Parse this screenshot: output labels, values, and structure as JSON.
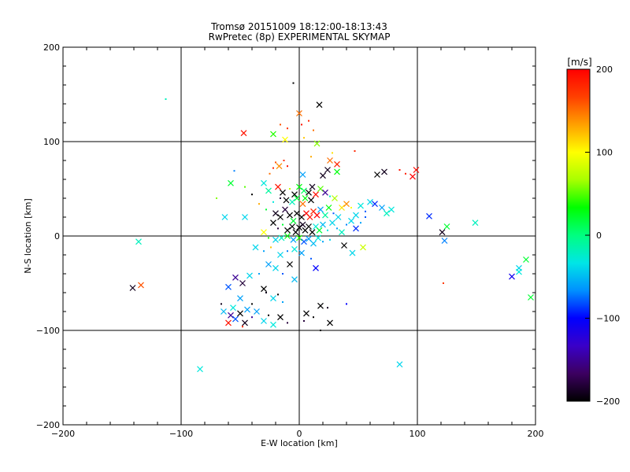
{
  "chart_data": {
    "type": "scatter",
    "title": "Tromsø 20151009 18:12:00-18:13:43",
    "subtitle": "RwPretec (8p) EXPERIMENTAL SKYMAP",
    "xlabel": "E-W location [km]",
    "ylabel": "N-S location [km]",
    "xlim": [
      -200,
      200
    ],
    "ylim": [
      -200,
      200
    ],
    "x_ticks": [
      -200,
      -100,
      0,
      100,
      200
    ],
    "y_ticks": [
      -200,
      -100,
      0,
      100,
      200
    ],
    "grid": true,
    "colorbar": {
      "label": "[m/s]",
      "range": [
        -200,
        200
      ],
      "ticks": [
        -200,
        -100,
        0,
        100,
        200
      ],
      "palette": [
        "#000000",
        "#3c0060",
        "#3a00c8",
        "#0000ff",
        "#0090ff",
        "#00e6e6",
        "#00ff80",
        "#00ff00",
        "#a8ff00",
        "#ffff00",
        "#ffa000",
        "#ff4000",
        "#ff0000"
      ]
    },
    "markers": [
      {
        "x": 17,
        "y": 139,
        "v": -200,
        "s": "x"
      },
      {
        "x": -5,
        "y": 162,
        "v": -200,
        "s": "dot"
      },
      {
        "x": 0,
        "y": 130,
        "v": 150,
        "s": "x"
      },
      {
        "x": -47,
        "y": 109,
        "v": 190,
        "s": "x"
      },
      {
        "x": -113,
        "y": 145,
        "v": -20,
        "s": "dot"
      },
      {
        "x": -16,
        "y": 118,
        "v": 160,
        "s": "dot"
      },
      {
        "x": -10,
        "y": 114,
        "v": 175,
        "s": "dot"
      },
      {
        "x": 2,
        "y": 118,
        "v": 190,
        "s": "dot"
      },
      {
        "x": 8,
        "y": 122,
        "v": 180,
        "s": "dot"
      },
      {
        "x": 12,
        "y": 112,
        "v": 150,
        "s": "dot"
      },
      {
        "x": -22,
        "y": 108,
        "v": 40,
        "s": "x"
      },
      {
        "x": -12,
        "y": 102,
        "v": 100,
        "s": "x"
      },
      {
        "x": 4,
        "y": 104,
        "v": 120,
        "s": "dot"
      },
      {
        "x": 15,
        "y": 98,
        "v": 60,
        "s": "x"
      },
      {
        "x": 10,
        "y": 84,
        "v": 130,
        "s": "dot"
      },
      {
        "x": 28,
        "y": 88,
        "v": 110,
        "s": "dot"
      },
      {
        "x": 47,
        "y": 90,
        "v": 180,
        "s": "dot"
      },
      {
        "x": 26,
        "y": 80,
        "v": 150,
        "s": "x"
      },
      {
        "x": 32,
        "y": 76,
        "v": 180,
        "s": "x"
      },
      {
        "x": 24,
        "y": 70,
        "v": -190,
        "s": "x"
      },
      {
        "x": 32,
        "y": 68,
        "v": 30,
        "s": "x"
      },
      {
        "x": -20,
        "y": 78,
        "v": 160,
        "s": "dot"
      },
      {
        "x": -17,
        "y": 74,
        "v": 140,
        "s": "x"
      },
      {
        "x": -22,
        "y": 72,
        "v": 180,
        "s": "dot"
      },
      {
        "x": -13,
        "y": 80,
        "v": 175,
        "s": "dot"
      },
      {
        "x": -10,
        "y": 74,
        "v": 190,
        "s": "dot"
      },
      {
        "x": -25,
        "y": 66,
        "v": 150,
        "s": "dot"
      },
      {
        "x": 3,
        "y": 65,
        "v": -60,
        "s": "x"
      },
      {
        "x": 20,
        "y": 64,
        "v": -190,
        "s": "x"
      },
      {
        "x": 66,
        "y": 65,
        "v": -200,
        "s": "x"
      },
      {
        "x": 72,
        "y": 68,
        "v": -190,
        "s": "x"
      },
      {
        "x": 85,
        "y": 70,
        "v": 190,
        "s": "dot"
      },
      {
        "x": 90,
        "y": 66,
        "v": 185,
        "s": "dot"
      },
      {
        "x": 99,
        "y": 70,
        "v": 195,
        "s": "x"
      },
      {
        "x": 96,
        "y": 63,
        "v": 200,
        "s": "x"
      },
      {
        "x": -55,
        "y": 69,
        "v": -70,
        "s": "dot"
      },
      {
        "x": -46,
        "y": 52,
        "v": 50,
        "s": "dot"
      },
      {
        "x": -58,
        "y": 56,
        "v": 20,
        "s": "x"
      },
      {
        "x": -40,
        "y": 44,
        "v": -200,
        "s": "dot"
      },
      {
        "x": -30,
        "y": 56,
        "v": -30,
        "s": "x"
      },
      {
        "x": -26,
        "y": 48,
        "v": -10,
        "s": "x"
      },
      {
        "x": -18,
        "y": 52,
        "v": 190,
        "s": "x"
      },
      {
        "x": -14,
        "y": 46,
        "v": -200,
        "s": "x"
      },
      {
        "x": -8,
        "y": 50,
        "v": 80,
        "s": "dot"
      },
      {
        "x": -4,
        "y": 44,
        "v": -200,
        "s": "x"
      },
      {
        "x": 0,
        "y": 52,
        "v": 30,
        "s": "x"
      },
      {
        "x": 4,
        "y": 48,
        "v": 10,
        "s": "x"
      },
      {
        "x": 8,
        "y": 46,
        "v": -200,
        "s": "x"
      },
      {
        "x": 11,
        "y": 52,
        "v": -190,
        "s": "x"
      },
      {
        "x": 14,
        "y": 44,
        "v": 190,
        "s": "x"
      },
      {
        "x": 18,
        "y": 50,
        "v": 50,
        "s": "x"
      },
      {
        "x": 22,
        "y": 46,
        "v": -150,
        "s": "x"
      },
      {
        "x": 26,
        "y": 42,
        "v": -20,
        "s": "dot"
      },
      {
        "x": 30,
        "y": 40,
        "v": 70,
        "s": "x"
      },
      {
        "x": -2,
        "y": 40,
        "v": 20,
        "s": "x"
      },
      {
        "x": 5,
        "y": 40,
        "v": 30,
        "s": "x"
      },
      {
        "x": 10,
        "y": 38,
        "v": -200,
        "s": "x"
      },
      {
        "x": 3,
        "y": 34,
        "v": 150,
        "s": "x"
      },
      {
        "x": -6,
        "y": 36,
        "v": -20,
        "s": "x"
      },
      {
        "x": -11,
        "y": 38,
        "v": -200,
        "s": "x"
      },
      {
        "x": -16,
        "y": 40,
        "v": -180,
        "s": "dot"
      },
      {
        "x": -22,
        "y": 36,
        "v": -30,
        "s": "dot"
      },
      {
        "x": -34,
        "y": 34,
        "v": 130,
        "s": "dot"
      },
      {
        "x": -70,
        "y": 40,
        "v": 60,
        "s": "dot"
      },
      {
        "x": -63,
        "y": 20,
        "v": -40,
        "s": "x"
      },
      {
        "x": -46,
        "y": 20,
        "v": -40,
        "s": "x"
      },
      {
        "x": -28,
        "y": 28,
        "v": 20,
        "s": "dot"
      },
      {
        "x": -20,
        "y": 24,
        "v": -190,
        "s": "x"
      },
      {
        "x": -16,
        "y": 20,
        "v": -200,
        "s": "x"
      },
      {
        "x": -12,
        "y": 28,
        "v": -180,
        "s": "x"
      },
      {
        "x": -8,
        "y": 22,
        "v": -200,
        "s": "x"
      },
      {
        "x": -5,
        "y": 16,
        "v": 20,
        "s": "x"
      },
      {
        "x": -2,
        "y": 24,
        "v": -200,
        "s": "x"
      },
      {
        "x": 2,
        "y": 20,
        "v": -200,
        "s": "x"
      },
      {
        "x": 6,
        "y": 24,
        "v": 200,
        "s": "x"
      },
      {
        "x": 9,
        "y": 20,
        "v": 190,
        "s": "x"
      },
      {
        "x": 12,
        "y": 26,
        "v": 180,
        "s": "x"
      },
      {
        "x": 15,
        "y": 22,
        "v": 200,
        "s": "x"
      },
      {
        "x": 18,
        "y": 28,
        "v": -60,
        "s": "x"
      },
      {
        "x": 22,
        "y": 22,
        "v": -10,
        "s": "x"
      },
      {
        "x": 25,
        "y": 30,
        "v": 30,
        "s": "x"
      },
      {
        "x": 29,
        "y": 24,
        "v": -80,
        "s": "dot"
      },
      {
        "x": 33,
        "y": 20,
        "v": -40,
        "s": "x"
      },
      {
        "x": 36,
        "y": 30,
        "v": 110,
        "s": "x"
      },
      {
        "x": 40,
        "y": 34,
        "v": 140,
        "s": "x"
      },
      {
        "x": 44,
        "y": 30,
        "v": 100,
        "s": "dot"
      },
      {
        "x": 48,
        "y": 22,
        "v": -40,
        "s": "x"
      },
      {
        "x": 52,
        "y": 32,
        "v": -30,
        "s": "x"
      },
      {
        "x": 56,
        "y": 26,
        "v": -80,
        "s": "dot"
      },
      {
        "x": 60,
        "y": 36,
        "v": -40,
        "s": "x"
      },
      {
        "x": 64,
        "y": 34,
        "v": -90,
        "s": "x"
      },
      {
        "x": 70,
        "y": 30,
        "v": -60,
        "s": "x"
      },
      {
        "x": 74,
        "y": 24,
        "v": -20,
        "s": "x"
      },
      {
        "x": 78,
        "y": 28,
        "v": -30,
        "s": "x"
      },
      {
        "x": 110,
        "y": 21,
        "v": -90,
        "s": "x"
      },
      {
        "x": 121,
        "y": 4,
        "v": -190,
        "s": "x"
      },
      {
        "x": 125,
        "y": 10,
        "v": 20,
        "s": "x"
      },
      {
        "x": 123,
        "y": -5,
        "v": -70,
        "s": "x"
      },
      {
        "x": 149,
        "y": 14,
        "v": -20,
        "s": "x"
      },
      {
        "x": -22,
        "y": 14,
        "v": -200,
        "s": "x"
      },
      {
        "x": -18,
        "y": 8,
        "v": -180,
        "s": "dot"
      },
      {
        "x": -14,
        "y": 12,
        "v": 20,
        "s": "dot"
      },
      {
        "x": -10,
        "y": 6,
        "v": -200,
        "s": "x"
      },
      {
        "x": -6,
        "y": 10,
        "v": -200,
        "s": "x"
      },
      {
        "x": -3,
        "y": 4,
        "v": -200,
        "s": "x"
      },
      {
        "x": 0,
        "y": 9,
        "v": -200,
        "s": "x"
      },
      {
        "x": 3,
        "y": 12,
        "v": -190,
        "s": "x"
      },
      {
        "x": 5,
        "y": 6,
        "v": -200,
        "s": "x"
      },
      {
        "x": 8,
        "y": 10,
        "v": -200,
        "s": "x"
      },
      {
        "x": 11,
        "y": 4,
        "v": -200,
        "s": "x"
      },
      {
        "x": 14,
        "y": 10,
        "v": -30,
        "s": "x"
      },
      {
        "x": 17,
        "y": 6,
        "v": 20,
        "s": "x"
      },
      {
        "x": 20,
        "y": 12,
        "v": -50,
        "s": "x"
      },
      {
        "x": 24,
        "y": 6,
        "v": -30,
        "s": "dot"
      },
      {
        "x": 28,
        "y": 14,
        "v": -40,
        "s": "x"
      },
      {
        "x": 32,
        "y": 8,
        "v": -60,
        "s": "dot"
      },
      {
        "x": 36,
        "y": 4,
        "v": -20,
        "s": "x"
      },
      {
        "x": 40,
        "y": 12,
        "v": -70,
        "s": "dot"
      },
      {
        "x": 44,
        "y": 16,
        "v": -40,
        "s": "x"
      },
      {
        "x": 48,
        "y": 8,
        "v": -90,
        "s": "x"
      },
      {
        "x": 52,
        "y": 14,
        "v": -60,
        "s": "dot"
      },
      {
        "x": 56,
        "y": 20,
        "v": -80,
        "s": "dot"
      },
      {
        "x": -30,
        "y": 4,
        "v": 100,
        "s": "x"
      },
      {
        "x": -26,
        "y": -2,
        "v": 40,
        "s": "dot"
      },
      {
        "x": -20,
        "y": -4,
        "v": -40,
        "s": "x"
      },
      {
        "x": -15,
        "y": -2,
        "v": -20,
        "s": "x"
      },
      {
        "x": -10,
        "y": 0,
        "v": 30,
        "s": "x"
      },
      {
        "x": -5,
        "y": -4,
        "v": -60,
        "s": "x"
      },
      {
        "x": 0,
        "y": -2,
        "v": 40,
        "s": "x"
      },
      {
        "x": 4,
        "y": -6,
        "v": -80,
        "s": "x"
      },
      {
        "x": 8,
        "y": -3,
        "v": -60,
        "s": "x"
      },
      {
        "x": 12,
        "y": -8,
        "v": -50,
        "s": "x"
      },
      {
        "x": 16,
        "y": -2,
        "v": -30,
        "s": "x"
      },
      {
        "x": 20,
        "y": -6,
        "v": -60,
        "s": "dot"
      },
      {
        "x": 26,
        "y": -4,
        "v": -40,
        "s": "dot"
      },
      {
        "x": 38,
        "y": -10,
        "v": -200,
        "s": "x"
      },
      {
        "x": 45,
        "y": -18,
        "v": -40,
        "s": "x"
      },
      {
        "x": 54,
        "y": -12,
        "v": 80,
        "s": "x"
      },
      {
        "x": -37,
        "y": -12,
        "v": -40,
        "s": "x"
      },
      {
        "x": -30,
        "y": -16,
        "v": -60,
        "s": "dot"
      },
      {
        "x": -24,
        "y": -12,
        "v": 120,
        "s": "dot"
      },
      {
        "x": -16,
        "y": -20,
        "v": -40,
        "s": "x"
      },
      {
        "x": -10,
        "y": -16,
        "v": -70,
        "s": "dot"
      },
      {
        "x": -4,
        "y": -14,
        "v": -30,
        "s": "x"
      },
      {
        "x": 2,
        "y": -18,
        "v": -60,
        "s": "x"
      },
      {
        "x": 10,
        "y": -24,
        "v": -80,
        "s": "dot"
      },
      {
        "x": 14,
        "y": -34,
        "v": -100,
        "s": "x"
      },
      {
        "x": -26,
        "y": -30,
        "v": -60,
        "s": "x"
      },
      {
        "x": -20,
        "y": -34,
        "v": -40,
        "s": "x"
      },
      {
        "x": -14,
        "y": -40,
        "v": -80,
        "s": "dot"
      },
      {
        "x": -8,
        "y": -30,
        "v": -200,
        "s": "x"
      },
      {
        "x": -4,
        "y": -46,
        "v": -50,
        "s": "x"
      },
      {
        "x": -34,
        "y": -40,
        "v": -60,
        "s": "dot"
      },
      {
        "x": -42,
        "y": -42,
        "v": -40,
        "s": "x"
      },
      {
        "x": -48,
        "y": -50,
        "v": -180,
        "s": "x"
      },
      {
        "x": -54,
        "y": -44,
        "v": -150,
        "s": "x"
      },
      {
        "x": -60,
        "y": -54,
        "v": -80,
        "s": "x"
      },
      {
        "x": -136,
        "y": -6,
        "v": -20,
        "s": "x"
      },
      {
        "x": -134,
        "y": -52,
        "v": 160,
        "s": "x"
      },
      {
        "x": -141,
        "y": -55,
        "v": -190,
        "s": "x"
      },
      {
        "x": -30,
        "y": -56,
        "v": -200,
        "s": "x"
      },
      {
        "x": -28,
        "y": -60,
        "v": -190,
        "s": "dot"
      },
      {
        "x": -22,
        "y": -66,
        "v": -40,
        "s": "x"
      },
      {
        "x": -18,
        "y": -62,
        "v": -200,
        "s": "dot"
      },
      {
        "x": -14,
        "y": -70,
        "v": -60,
        "s": "dot"
      },
      {
        "x": -50,
        "y": -66,
        "v": -60,
        "s": "x"
      },
      {
        "x": -56,
        "y": -76,
        "v": -30,
        "s": "x"
      },
      {
        "x": -64,
        "y": -80,
        "v": -50,
        "s": "x"
      },
      {
        "x": -58,
        "y": -84,
        "v": -150,
        "s": "x"
      },
      {
        "x": -54,
        "y": -88,
        "v": -80,
        "s": "x"
      },
      {
        "x": -50,
        "y": -82,
        "v": -200,
        "s": "x"
      },
      {
        "x": -46,
        "y": -92,
        "v": -190,
        "s": "x"
      },
      {
        "x": -40,
        "y": -86,
        "v": -150,
        "s": "dot"
      },
      {
        "x": -36,
        "y": -80,
        "v": -60,
        "s": "x"
      },
      {
        "x": -30,
        "y": -90,
        "v": -40,
        "s": "x"
      },
      {
        "x": -26,
        "y": -84,
        "v": -200,
        "s": "dot"
      },
      {
        "x": -22,
        "y": -94,
        "v": -30,
        "s": "x"
      },
      {
        "x": -16,
        "y": -86,
        "v": -200,
        "s": "x"
      },
      {
        "x": -10,
        "y": -92,
        "v": -180,
        "s": "dot"
      },
      {
        "x": -60,
        "y": -92,
        "v": 190,
        "s": "x"
      },
      {
        "x": -48,
        "y": -96,
        "v": 180,
        "s": "dot"
      },
      {
        "x": -66,
        "y": -72,
        "v": -190,
        "s": "dot"
      },
      {
        "x": -40,
        "y": -72,
        "v": -200,
        "s": "dot"
      },
      {
        "x": -44,
        "y": -78,
        "v": -60,
        "s": "x"
      },
      {
        "x": 6,
        "y": -82,
        "v": -200,
        "s": "x"
      },
      {
        "x": 12,
        "y": -86,
        "v": -200,
        "s": "dot"
      },
      {
        "x": 18,
        "y": -74,
        "v": -200,
        "s": "x"
      },
      {
        "x": 24,
        "y": -76,
        "v": -190,
        "s": "dot"
      },
      {
        "x": 26,
        "y": -92,
        "v": -200,
        "s": "x"
      },
      {
        "x": 18,
        "y": -100,
        "v": -200,
        "s": "dot"
      },
      {
        "x": 4,
        "y": -90,
        "v": -180,
        "s": "dot"
      },
      {
        "x": 40,
        "y": -72,
        "v": -100,
        "s": "dot"
      },
      {
        "x": -84,
        "y": -141,
        "v": -30,
        "s": "x"
      },
      {
        "x": 85,
        "y": -136,
        "v": -40,
        "s": "x"
      },
      {
        "x": 122,
        "y": -50,
        "v": 170,
        "s": "dot"
      },
      {
        "x": 180,
        "y": -43,
        "v": -110,
        "s": "x"
      },
      {
        "x": 186,
        "y": -34,
        "v": -40,
        "s": "x"
      },
      {
        "x": 186,
        "y": -38,
        "v": -30,
        "s": "x"
      },
      {
        "x": 192,
        "y": -25,
        "v": 20,
        "s": "x"
      },
      {
        "x": 196,
        "y": -65,
        "v": 20,
        "s": "x"
      }
    ]
  }
}
